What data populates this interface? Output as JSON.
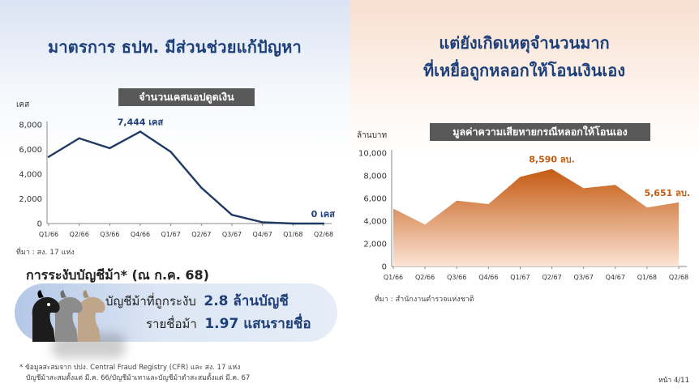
{
  "left": {
    "title": "มาตรการ ธปท. มีส่วนช่วยแก้ปัญหา",
    "source": "ที่มา : สง. 17 แห่ง",
    "accounts": {
      "heading": "การระงับบัญชีม้า* (ณ ก.ค. 68)",
      "row1_label": "บัญชีม้าที่ถูกระงับ",
      "row1_value": "2.8 ล้านบัญชี",
      "row2_label": "รายชื่อม้า",
      "row2_value": "1.97 แสนรายชื่อ"
    },
    "footnote_line1": "* ข้อมูลสะสมจาก ปปง. Central Fraud Registry (CFR) และ สง. 17 แห่ง",
    "footnote_line2": "บัญชีม้าสะสมตั้งแต่ มี.ค. 66/บัญชีม้าเทาและบัญชีม้าดำสะสมตั้งแต่ มี.ค. 67"
  },
  "right": {
    "title_line1": "แต่ยังเกิดเหตุจำนวนมาก",
    "title_line2": "ที่เหยื่อถูกหลอกให้โอนเงินเอง",
    "source": "ที่มา : สำนักงานตำรวจแห่งชาติ"
  },
  "page_number": "หน้า 4/11",
  "colors": {
    "navy": "#1d3f7a",
    "line": "#1f3864",
    "orange": "#c55a11",
    "banner": "#595959"
  },
  "icons": [
    "horse-head-icon-black",
    "horse-head-icon-gray",
    "horse-head-icon-tan"
  ],
  "chart_data": [
    {
      "type": "line",
      "title": "จำนวนเคสแอปดูดเงิน",
      "ylabel": "เคส",
      "categories": [
        "Q1/66",
        "Q2/66",
        "Q3/66",
        "Q4/66",
        "Q1/67",
        "Q2/67",
        "Q3/67",
        "Q4/67",
        "Q1/68",
        "Q2/68"
      ],
      "values": [
        5400,
        6900,
        6100,
        7444,
        5800,
        2900,
        700,
        100,
        0,
        0
      ],
      "ylim": [
        0,
        8000
      ],
      "yticks": [
        "0",
        "2,000",
        "4,000",
        "6,000",
        "8,000"
      ],
      "annotations": [
        {
          "index": 3,
          "text": "7,444 เคส"
        },
        {
          "index": 9,
          "text": "0 เคส"
        }
      ],
      "grid": false
    },
    {
      "type": "area",
      "title": "มูลค่าความเสียหายกรณีหลอกให้โอนเอง",
      "ylabel": "ล้านบาท",
      "categories": [
        "Q1/66",
        "Q2/66",
        "Q3/66",
        "Q4/66",
        "Q1/67",
        "Q2/67",
        "Q3/67",
        "Q4/67",
        "Q1/68",
        "Q2/68"
      ],
      "values": [
        5100,
        3700,
        5800,
        5500,
        7900,
        8590,
        6900,
        7200,
        5200,
        5651
      ],
      "ylim": [
        0,
        10000
      ],
      "yticks": [
        "0",
        "2,000",
        "4,000",
        "6,000",
        "8,000",
        "10,000"
      ],
      "annotations": [
        {
          "index": 5,
          "text": "8,590 ลบ."
        },
        {
          "index": 9,
          "text": "5,651 ลบ."
        }
      ],
      "grid": false
    }
  ]
}
